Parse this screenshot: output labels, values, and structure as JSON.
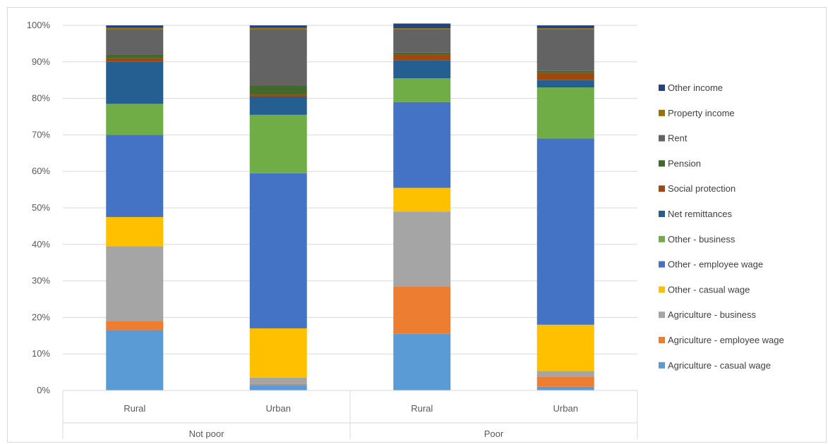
{
  "chart_data": {
    "type": "bar",
    "stacked": true,
    "percent_stacked": true,
    "title": "",
    "xlabel": "",
    "ylabel": "",
    "ylim": [
      0,
      100
    ],
    "y_ticks": [
      "0%",
      "10%",
      "20%",
      "30%",
      "40%",
      "50%",
      "60%",
      "70%",
      "80%",
      "90%",
      "100%"
    ],
    "grid": true,
    "legend_position": "right",
    "categories": [
      "Rural",
      "Urban",
      "Rural",
      "Urban"
    ],
    "groups": [
      {
        "label": "Not poor",
        "span": [
          0,
          1
        ]
      },
      {
        "label": "Poor",
        "span": [
          2,
          3
        ]
      }
    ],
    "series": [
      {
        "name": "Agriculture - casual wage",
        "color": "#5b9bd5",
        "values": [
          16.5,
          1.5,
          15.5,
          1.0
        ]
      },
      {
        "name": "Agriculture - employee wage",
        "color": "#ed7d31",
        "values": [
          2.5,
          0.3,
          13.0,
          2.8
        ]
      },
      {
        "name": "Agriculture - business",
        "color": "#a5a5a5",
        "values": [
          20.5,
          1.7,
          20.5,
          1.5
        ]
      },
      {
        "name": "Other -  casual wage",
        "color": "#ffc000",
        "values": [
          8.0,
          13.5,
          6.5,
          12.7
        ]
      },
      {
        "name": "Other - employee wage",
        "color": "#4472c4",
        "values": [
          22.5,
          42.5,
          23.5,
          51.0
        ]
      },
      {
        "name": "Other -  business",
        "color": "#70ad47",
        "values": [
          8.5,
          16.0,
          6.5,
          14.0
        ]
      },
      {
        "name": "Net remittances",
        "color": "#255e91",
        "values": [
          11.5,
          5.0,
          5.0,
          2.0
        ]
      },
      {
        "name": "Social protection",
        "color": "#9e480e",
        "values": [
          1.0,
          0.5,
          1.5,
          2.0
        ]
      },
      {
        "name": "Pension",
        "color": "#43682b",
        "values": [
          1.0,
          2.5,
          0.5,
          0.5
        ]
      },
      {
        "name": "Rent",
        "color": "#636363",
        "values": [
          7.0,
          15.5,
          6.5,
          11.5
        ]
      },
      {
        "name": "Property income",
        "color": "#997300",
        "values": [
          0.3,
          0.3,
          0.2,
          0.2
        ]
      },
      {
        "name": "Other income",
        "color": "#264478",
        "values": [
          0.7,
          0.7,
          1.3,
          0.8
        ]
      }
    ]
  }
}
